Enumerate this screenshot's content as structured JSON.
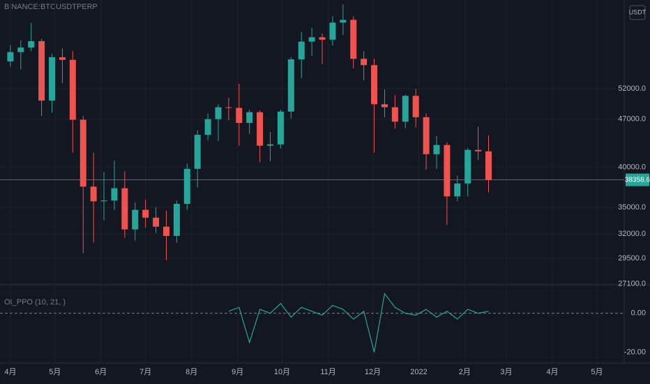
{
  "chart_data": [
    {
      "type": "candlestick",
      "title": "BINANCE:BTCUSDTPERP",
      "currency": "USDT",
      "log_scale": true,
      "up_color": "#26a69a",
      "down_color": "#ef5350",
      "grid": true,
      "last_price": 38358.6,
      "last_price_label": "38358.6",
      "x": [
        0,
        1,
        2,
        3,
        4,
        5,
        6,
        7,
        8,
        9,
        10,
        11,
        12,
        13,
        14,
        15,
        16,
        17,
        18,
        19,
        20,
        21,
        22,
        23,
        24,
        25,
        26,
        27,
        28,
        29,
        30,
        31,
        32,
        33,
        34,
        35,
        36,
        37,
        38,
        39,
        40,
        41,
        42,
        43,
        44,
        45,
        46
      ],
      "open": [
        57000,
        58800,
        59700,
        61000,
        50000,
        57800,
        57300,
        46900,
        37500,
        35700,
        35800,
        37300,
        32500,
        34700,
        33800,
        32800,
        31800,
        35400,
        39800,
        44600,
        47000,
        48900,
        48800,
        46400,
        48100,
        43000,
        43200,
        48200,
        57400,
        60900,
        61800,
        61300,
        64900,
        65500,
        57500,
        56300,
        49400,
        48900,
        46600,
        50800,
        47300,
        41800,
        43100,
        36300,
        37900,
        42400,
        42200
      ],
      "high": [
        60200,
        61200,
        64800,
        61500,
        58500,
        59500,
        59000,
        47500,
        42000,
        39400,
        40900,
        39500,
        35600,
        35900,
        35000,
        34600,
        35800,
        40500,
        45300,
        47900,
        49400,
        50500,
        52900,
        48500,
        48400,
        45000,
        48500,
        57800,
        62900,
        63800,
        62600,
        66300,
        69000,
        66300,
        59000,
        57500,
        51900,
        50900,
        51000,
        52000,
        47900,
        44400,
        43500,
        38900,
        42700,
        45800,
        44500
      ],
      "low": [
        56000,
        55500,
        59000,
        47500,
        48000,
        53000,
        42000,
        30000,
        31100,
        33500,
        34700,
        31600,
        31300,
        32700,
        32100,
        29300,
        31100,
        34700,
        37400,
        43800,
        43700,
        46800,
        43000,
        44700,
        40700,
        40800,
        42600,
        47100,
        53900,
        58100,
        56500,
        60100,
        62300,
        55700,
        53500,
        42000,
        47300,
        45500,
        45600,
        45700,
        39700,
        39800,
        33000,
        35700,
        36300,
        41000,
        36800
      ],
      "close": [
        58800,
        59700,
        61000,
        50000,
        57800,
        57300,
        46900,
        37500,
        35700,
        35800,
        37300,
        32500,
        34700,
        33800,
        32800,
        31800,
        35400,
        39800,
        44600,
        47000,
        48900,
        48800,
        46400,
        48100,
        43000,
        43200,
        48200,
        57400,
        60900,
        61800,
        61300,
        64900,
        65500,
        57500,
        56300,
        49400,
        48900,
        46600,
        50800,
        47300,
        41800,
        43100,
        36300,
        37900,
        42400,
        42200,
        38358.6
      ],
      "xlim": [
        -1,
        59.05
      ],
      "xticks": [
        {
          "value": 0,
          "label": "4月"
        },
        {
          "value": 4.29,
          "label": "5月"
        },
        {
          "value": 8.71,
          "label": "6月"
        },
        {
          "value": 13,
          "label": "7月"
        },
        {
          "value": 17.43,
          "label": "8月"
        },
        {
          "value": 21.86,
          "label": "9月"
        },
        {
          "value": 26.14,
          "label": "10月"
        },
        {
          "value": 30.57,
          "label": "11月"
        },
        {
          "value": 34.86,
          "label": "12月"
        },
        {
          "value": 39.29,
          "label": "2022"
        },
        {
          "value": 43.71,
          "label": "2月"
        },
        {
          "value": 47.71,
          "label": "3月"
        },
        {
          "value": 52.14,
          "label": "4月"
        },
        {
          "value": 56.43,
          "label": "5月"
        }
      ],
      "ylim": [
        27000,
        70000
      ],
      "yticks": [
        {
          "value": 52000,
          "label": "52000.0"
        },
        {
          "value": 47000,
          "label": "47000.0"
        },
        {
          "value": 40000,
          "label": "40000.0"
        },
        {
          "value": 35000,
          "label": "35000.0"
        },
        {
          "value": 32000,
          "label": "32000.0"
        },
        {
          "value": 29500,
          "label": "29500.0"
        },
        {
          "value": 27100,
          "label": "27100.0"
        }
      ]
    },
    {
      "type": "line",
      "title": "OI_PPO (10, 21, )",
      "color": "#26a69a",
      "zero_line": 0,
      "x": [
        21,
        22,
        23,
        24,
        25,
        26,
        27,
        28,
        29,
        30,
        31,
        32,
        33,
        34,
        35,
        36,
        37,
        38,
        39,
        40,
        41,
        42,
        43,
        44,
        45,
        46
      ],
      "values": [
        1,
        3,
        -15,
        2,
        0,
        5,
        -2,
        3,
        1,
        -1,
        4,
        2,
        -3,
        1,
        -20,
        10,
        3,
        0,
        -1,
        2,
        -2,
        1,
        -3,
        2,
        0,
        1
      ],
      "ylim": [
        -24.8,
        13.1
      ],
      "yticks": [
        {
          "value": 0,
          "label": "0.00"
        },
        {
          "value": -20,
          "label": "-20.00"
        }
      ]
    }
  ]
}
